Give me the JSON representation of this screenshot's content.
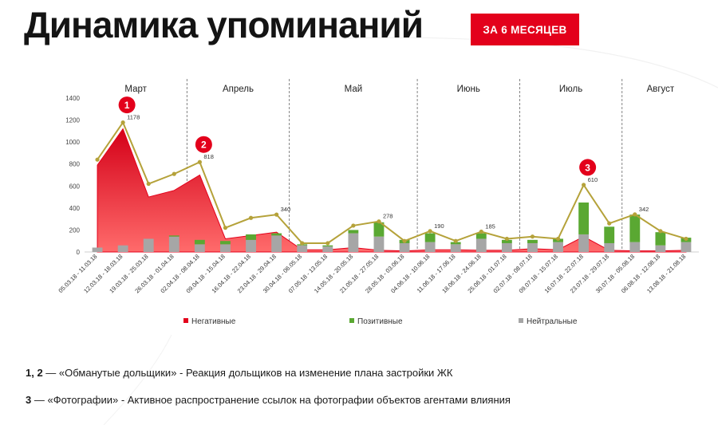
{
  "header": {
    "title": "Динамика упоминаний",
    "period_badge": "ЗА 6 МЕСЯЦЕВ"
  },
  "colors": {
    "negative": "#e3001b",
    "positive": "#5aa832",
    "neutral": "#a6a6a6",
    "total_line": "#b5a23a",
    "badge": "#e3001b"
  },
  "chart_data": {
    "type": "area",
    "title": "",
    "xlabel": "",
    "ylabel": "",
    "ylim": [
      0,
      1400
    ],
    "yticks": [
      "0",
      "200",
      "400",
      "600",
      "800",
      "1000",
      "1200",
      "1400"
    ],
    "months": [
      {
        "label": "Март",
        "start_index": 0
      },
      {
        "label": "Апрель",
        "start_index": 4
      },
      {
        "label": "Май",
        "start_index": 8
      },
      {
        "label": "Июнь",
        "start_index": 13
      },
      {
        "label": "Июль",
        "start_index": 17
      },
      {
        "label": "Август",
        "start_index": 21
      }
    ],
    "categories": [
      "05.03.18 - 11.03.18",
      "12.03.18 - 18.03.18",
      "19.03.18 - 25.03.18",
      "26.03.18 - 01.04.18",
      "02.04.18 - 08.04.18",
      "09.04.18 - 15.04.18",
      "16.04.18 - 22.04.18",
      "23.04.18 - 29.04.18",
      "30.04.18 - 06.05.18",
      "07.05.18 - 13.05.18",
      "14.05.18 - 20.05.18",
      "21.05.18 - 27.05.18",
      "28.05.18 - 03.06.18",
      "04.06.18 - 10.06.18",
      "11.06.18 - 17.06.18",
      "18.06.18 - 24.06.18",
      "25.06.18 - 01.07.18",
      "02.07.18 - 08.07.18",
      "09.07.18 - 15.07.18",
      "16.07.18 - 22.07.18",
      "23.07.18 - 29.07.18",
      "30.07.18 - 05.08.18",
      "06.08.18 - 12.08.18",
      "13.08.18 - 21.08.18"
    ],
    "series": [
      {
        "name": "Негативные",
        "kind": "area",
        "values": [
          790,
          1120,
          500,
          560,
          700,
          120,
          150,
          180,
          20,
          20,
          40,
          15,
          10,
          20,
          20,
          15,
          15,
          30,
          20,
          140,
          15,
          10,
          10,
          15
        ]
      },
      {
        "name": "Позитивные",
        "kind": "bar",
        "values": [
          0,
          0,
          0,
          10,
          40,
          30,
          50,
          20,
          10,
          10,
          30,
          130,
          30,
          80,
          20,
          50,
          30,
          30,
          30,
          290,
          150,
          250,
          120,
          40
        ]
      },
      {
        "name": "Нейтральные",
        "kind": "bar",
        "values": [
          40,
          60,
          120,
          140,
          70,
          70,
          110,
          150,
          60,
          50,
          170,
          140,
          80,
          90,
          70,
          120,
          80,
          80,
          90,
          160,
          80,
          90,
          60,
          90
        ]
      },
      {
        "name": "",
        "kind": "line",
        "values": [
          840,
          1178,
          620,
          710,
          818,
          220,
          310,
          340,
          80,
          80,
          240,
          278,
          100,
          190,
          100,
          185,
          120,
          140,
          120,
          610,
          260,
          342,
          190,
          120
        ]
      }
    ],
    "data_labels": [
      {
        "index": 1,
        "text": "1178"
      },
      {
        "index": 4,
        "text": "818"
      },
      {
        "index": 7,
        "text": "340"
      },
      {
        "index": 11,
        "text": "278"
      },
      {
        "index": 13,
        "text": "190"
      },
      {
        "index": 15,
        "text": "185"
      },
      {
        "index": 19,
        "text": "610"
      },
      {
        "index": 21,
        "text": "342"
      }
    ],
    "annotations": [
      {
        "index": 1,
        "label": "1"
      },
      {
        "index": 4,
        "label": "2"
      },
      {
        "index": 19,
        "label": "3"
      }
    ],
    "legend": [
      {
        "label": "Негативные",
        "series": 0
      },
      {
        "label": "Позитивные",
        "series": 1
      },
      {
        "label": "Нейтральные",
        "series": 2
      }
    ],
    "legend_position": "bottom",
    "grid": false
  },
  "notes": [
    {
      "key": "1, 2",
      "text": " — «Обманутые дольщики» - Реакция дольщиков на изменение плана застройки ЖК"
    },
    {
      "key": "3",
      "text": " — «Фотографии» - Активное распространение ссылок на фотографии объектов агентами влияния"
    }
  ]
}
